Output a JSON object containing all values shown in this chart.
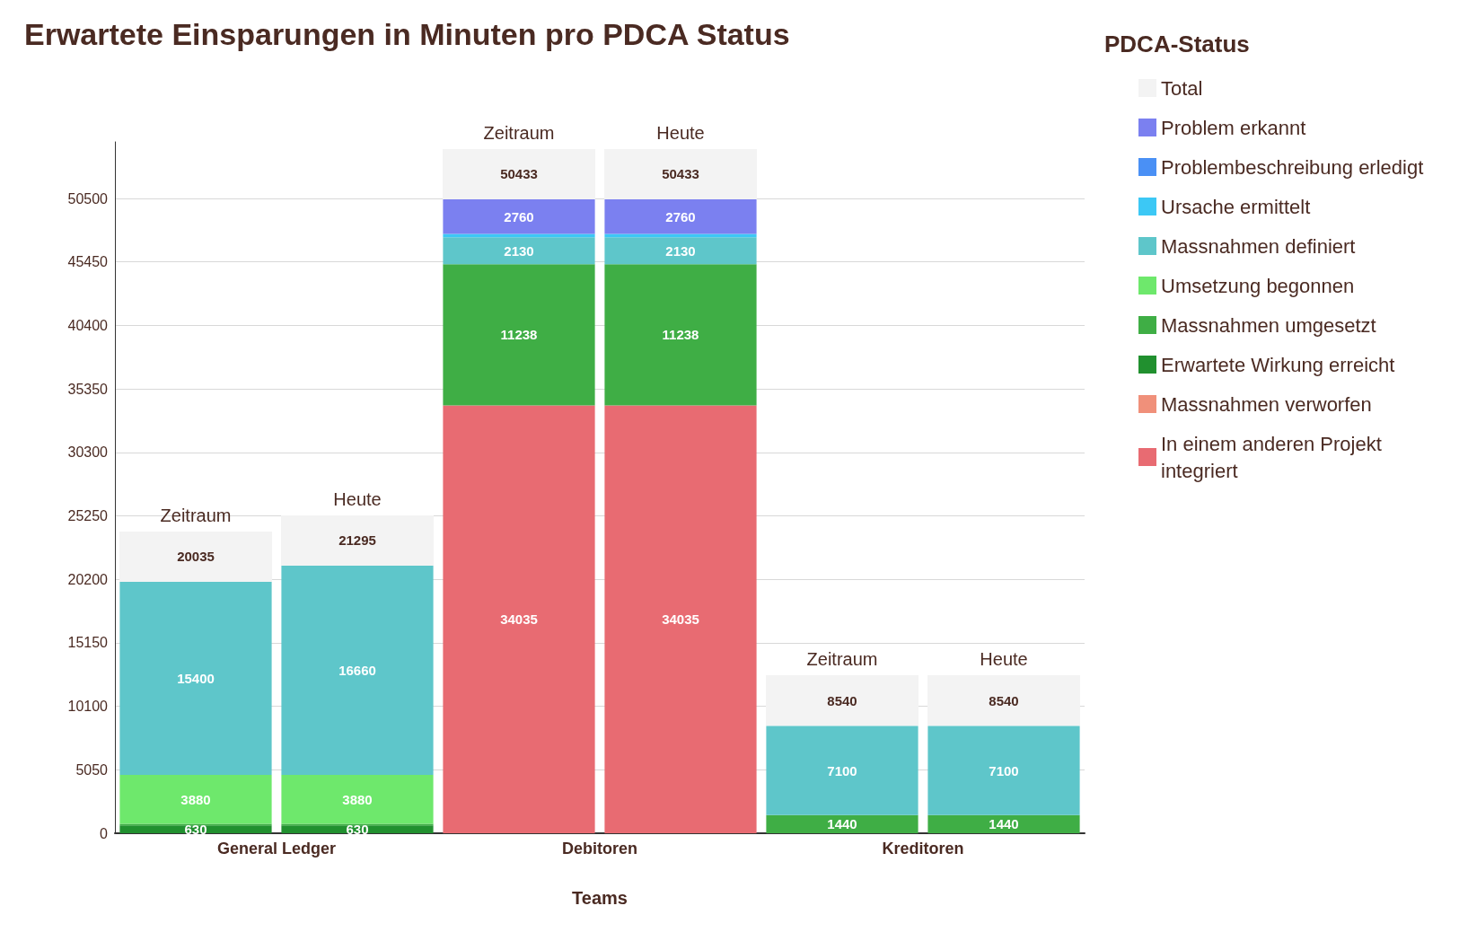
{
  "chart_data": {
    "type": "bar",
    "title": "Erwartete Einsparungen in Minuten pro PDCA Status",
    "xlabel": "Teams",
    "legend_title": "PDCA-Status",
    "categories": [
      "Zeitraum",
      "Heute",
      "Zeitraum",
      "Heute",
      "Zeitraum",
      "Heute"
    ],
    "annotations": [
      "General Ledger",
      "Debitoren",
      "Kreditoren"
    ],
    "stacked": true,
    "grid": "y",
    "legend": "right",
    "ylim": [
      0,
      55000
    ],
    "yticks": [
      0,
      5050,
      10100,
      15150,
      20200,
      25250,
      30300,
      35350,
      40400,
      45450,
      50500
    ],
    "series": [
      {
        "name": "In einem anderen Projekt integriert",
        "color": "#e86b72",
        "values": [
          null,
          null,
          34035,
          34035,
          null,
          null
        ],
        "value_labels": [
          null,
          null,
          "34035",
          "34035",
          null,
          null
        ]
      },
      {
        "name": "Massnahmen verworfen",
        "color": "#f0907a",
        "values": [
          null,
          null,
          null,
          null,
          null,
          null
        ]
      },
      {
        "name": "Erwartete Wirkung erreicht",
        "color": "#21902f",
        "values": [
          630,
          630,
          null,
          null,
          null,
          null
        ],
        "value_labels": [
          "630",
          "630",
          null,
          null,
          null,
          null
        ]
      },
      {
        "name": "Massnahmen umgesetzt",
        "color": "#3fae45",
        "values": [
          125,
          125,
          11238,
          11238,
          1440,
          1440
        ],
        "value_labels": [
          null,
          null,
          "11238",
          "11238",
          "1440",
          "1440"
        ]
      },
      {
        "name": "Umsetzung begonnen",
        "color": "#6ee86c",
        "values": [
          3880,
          3880,
          null,
          null,
          null,
          null
        ],
        "value_labels": [
          "3880",
          "3880",
          null,
          null,
          null,
          null
        ]
      },
      {
        "name": "Massnahmen definiert",
        "color": "#5ec6ca",
        "values": [
          15400,
          16660,
          2130,
          2130,
          7100,
          7100
        ],
        "value_labels": [
          "15400",
          "16660",
          "2130",
          "2130",
          "7100",
          "7100"
        ]
      },
      {
        "name": "Ursache ermittelt",
        "color": "#3cc8f5",
        "values": [
          null,
          null,
          270,
          270,
          null,
          null
        ]
      },
      {
        "name": "Problembeschreibung erledigt",
        "color": "#4a90f5",
        "values": [
          null,
          null,
          null,
          null,
          null,
          null
        ]
      },
      {
        "name": "Problem erkannt",
        "color": "#7b80f0",
        "values": [
          null,
          null,
          2760,
          2760,
          null,
          null
        ],
        "value_labels": [
          null,
          null,
          "2760",
          "2760",
          null,
          null
        ]
      },
      {
        "name": "Total",
        "color": "#f3f3f3",
        "values": [
          null,
          null,
          null,
          null,
          null,
          null
        ]
      }
    ],
    "totals": [
      "20035",
      "21295",
      "50433",
      "50433",
      "8540",
      "8540"
    ]
  }
}
